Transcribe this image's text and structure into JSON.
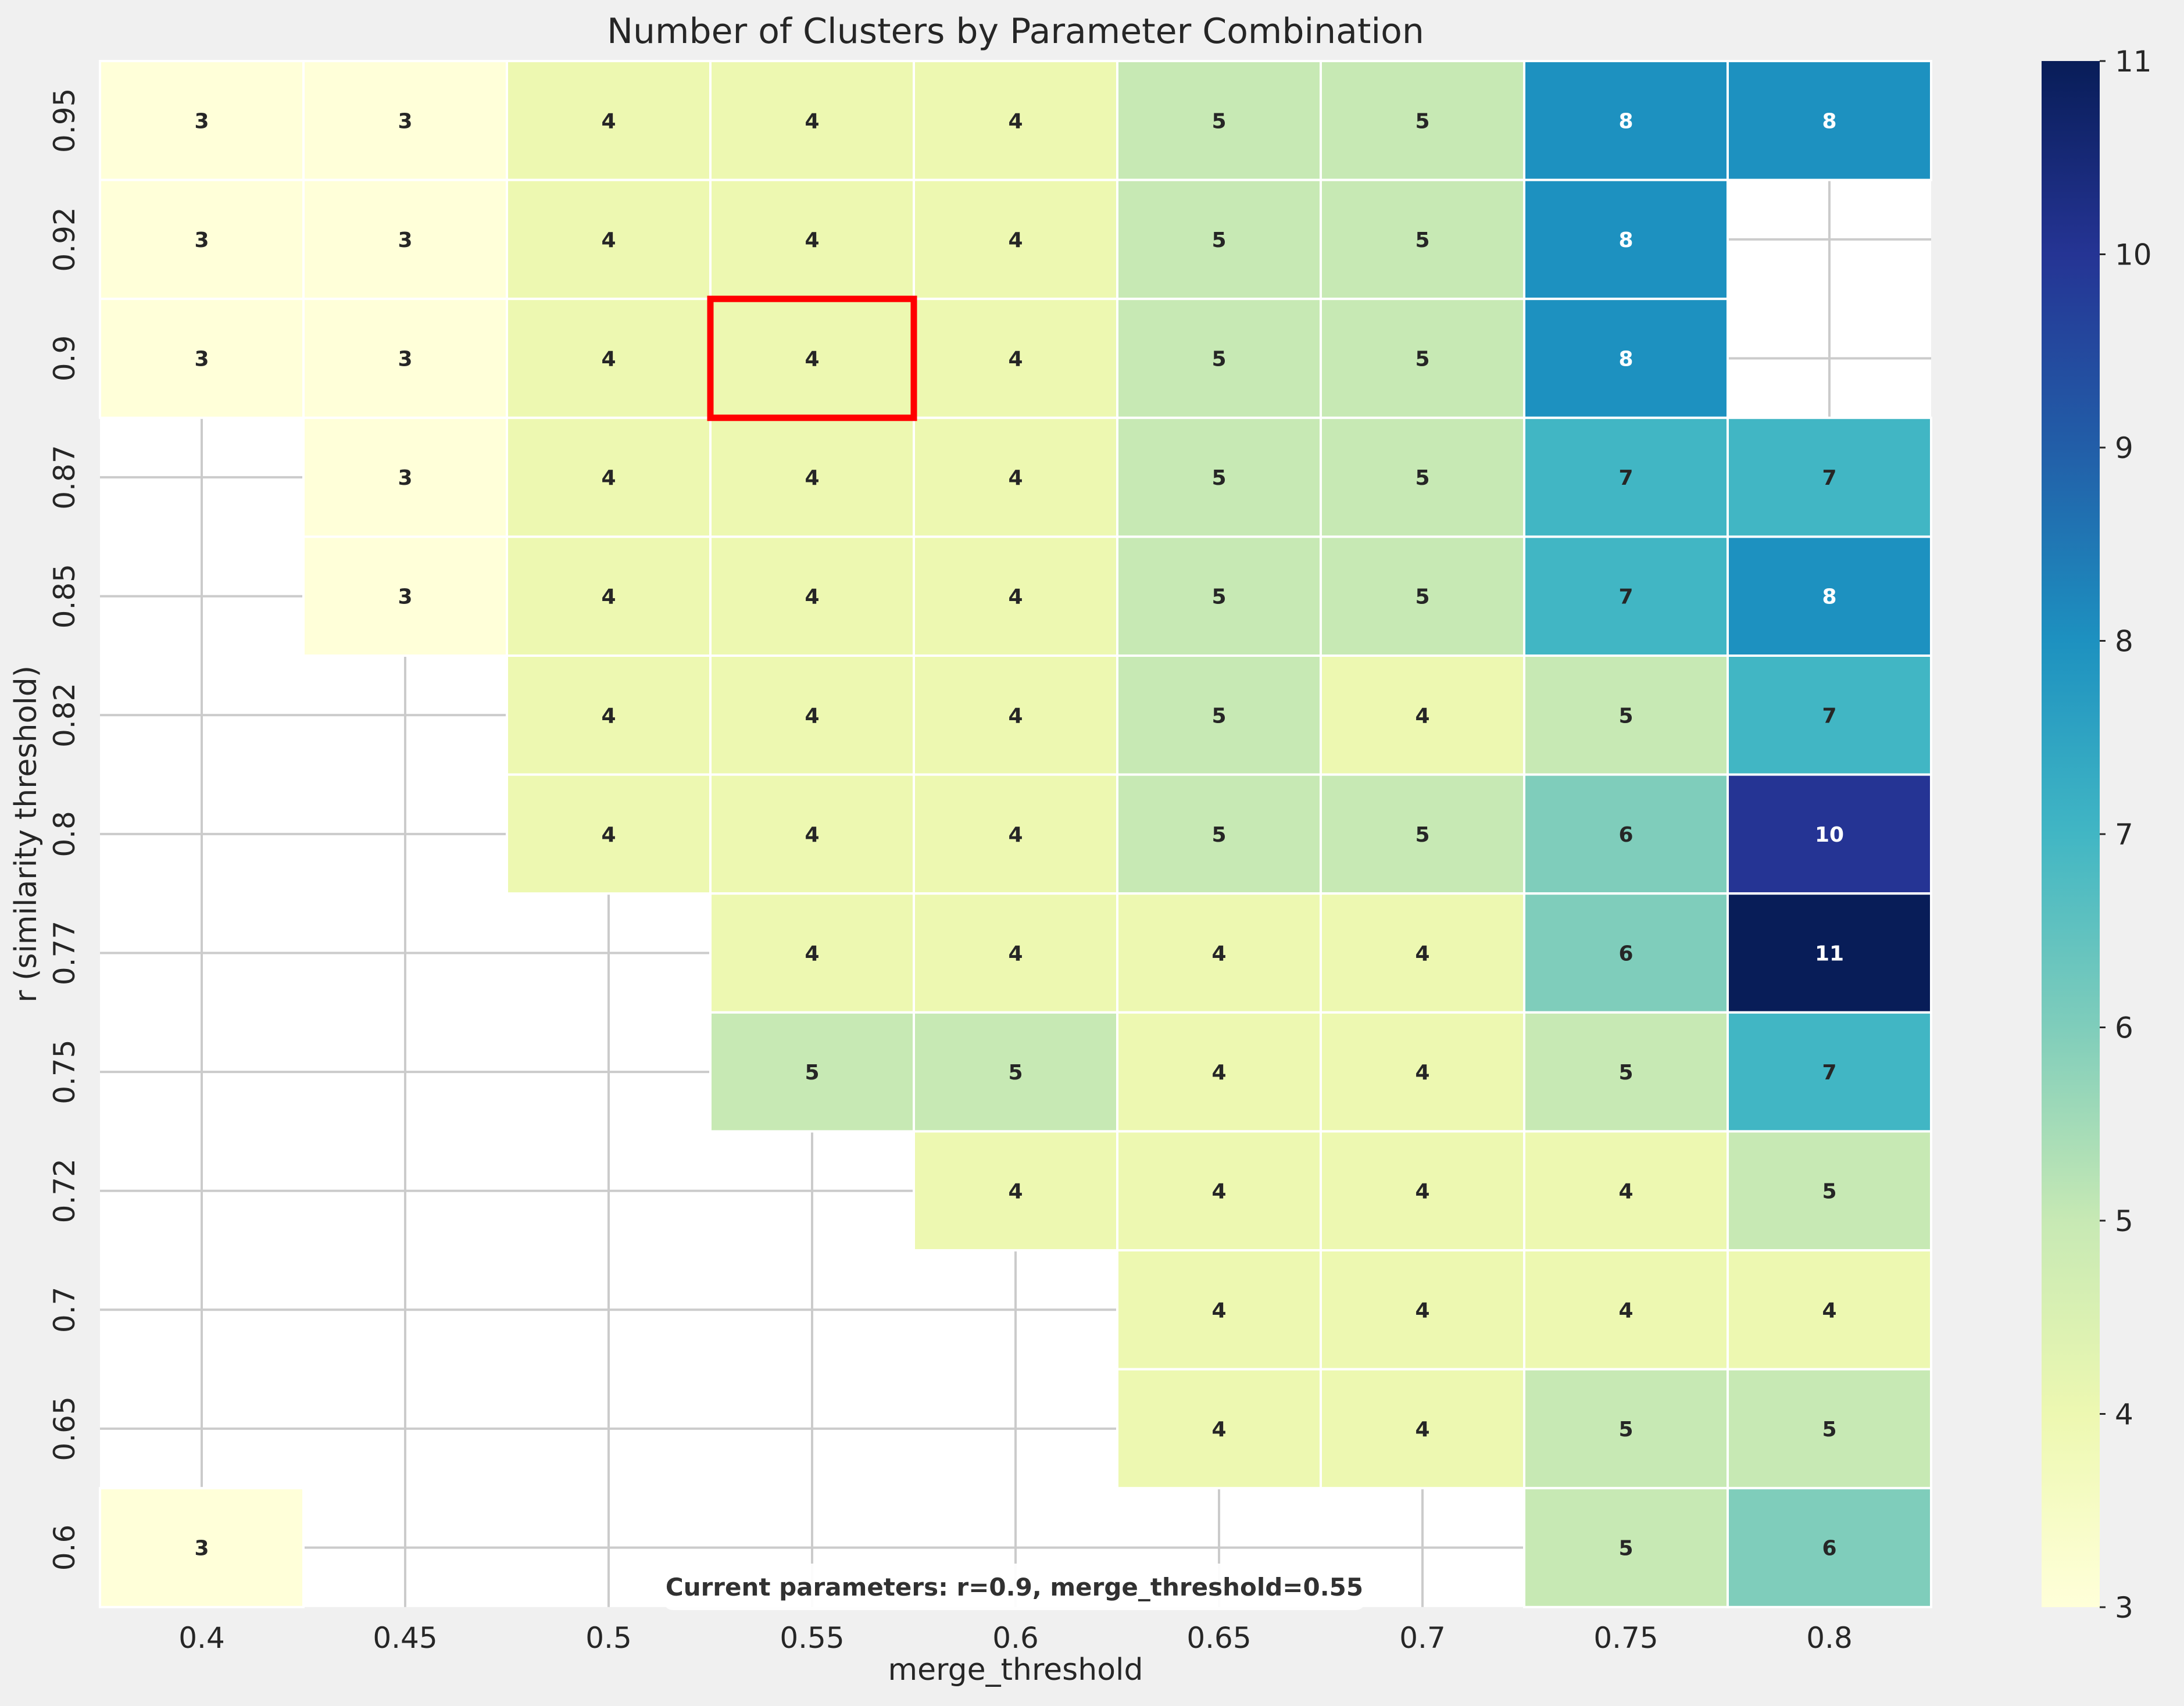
{
  "chart_data": {
    "type": "heatmap",
    "title": "Number of Clusters by Parameter Combination",
    "xlabel": "merge_threshold",
    "ylabel": "r (similarity threshold)",
    "x_categories": [
      "0.4",
      "0.45",
      "0.5",
      "0.55",
      "0.6",
      "0.65",
      "0.7",
      "0.75",
      "0.8"
    ],
    "y_categories": [
      "0.95",
      "0.92",
      "0.9",
      "0.87",
      "0.85",
      "0.82",
      "0.8",
      "0.77",
      "0.75",
      "0.72",
      "0.7",
      "0.65",
      "0.6"
    ],
    "values": [
      [
        3,
        3,
        4,
        4,
        4,
        5,
        5,
        8,
        8
      ],
      [
        3,
        3,
        4,
        4,
        4,
        5,
        5,
        8,
        null
      ],
      [
        3,
        3,
        4,
        4,
        4,
        5,
        5,
        8,
        null
      ],
      [
        null,
        3,
        4,
        4,
        4,
        5,
        5,
        7,
        7
      ],
      [
        null,
        3,
        4,
        4,
        4,
        5,
        5,
        7,
        8
      ],
      [
        null,
        null,
        4,
        4,
        4,
        5,
        4,
        5,
        7
      ],
      [
        null,
        null,
        4,
        4,
        4,
        5,
        5,
        6,
        10
      ],
      [
        null,
        null,
        null,
        4,
        4,
        4,
        4,
        6,
        11
      ],
      [
        null,
        null,
        null,
        5,
        5,
        4,
        4,
        5,
        7
      ],
      [
        null,
        null,
        null,
        null,
        4,
        4,
        4,
        4,
        5
      ],
      [
        null,
        null,
        null,
        null,
        null,
        4,
        4,
        4,
        4
      ],
      [
        null,
        null,
        null,
        null,
        null,
        4,
        4,
        5,
        5
      ],
      [
        3,
        null,
        null,
        null,
        null,
        null,
        null,
        5,
        6
      ]
    ],
    "colorbar": {
      "min": 3,
      "max": 11,
      "ticks": [
        "3",
        "4",
        "5",
        "6",
        "7",
        "8",
        "9",
        "10",
        "11"
      ],
      "colormap": "YlGnBu"
    },
    "highlight": {
      "r": "0.9",
      "merge_threshold": "0.55",
      "color": "#ff0000"
    },
    "grid": true,
    "annotation": "Current parameters: r=0.9, merge_threshold=0.55"
  }
}
